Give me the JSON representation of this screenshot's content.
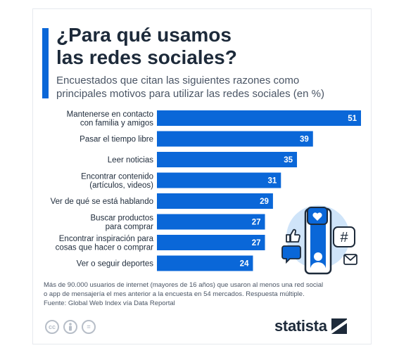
{
  "header": {
    "title_lines": [
      "¿Para qué usamos",
      "las redes sociales?"
    ],
    "subtitle_lines": [
      "Encuestados que citan las siguientes razones como",
      "principales motivos para utilizar las redes sociales (en %)"
    ]
  },
  "chart_data": {
    "type": "bar",
    "orientation": "horizontal",
    "title": "¿Para qué usamos las redes sociales?",
    "subtitle": "Encuestados que citan las siguientes razones como principales motivos para utilizar las redes sociales (en %)",
    "categories": [
      [
        "Mantenerse en contacto",
        "con familia y amigos"
      ],
      [
        "Pasar el tiempo libre"
      ],
      [
        "Leer noticias"
      ],
      [
        "Encontrar contenido",
        "(artículos, videos)"
      ],
      [
        "Ver de qué se está hablando"
      ],
      [
        "Buscar productos",
        "para comprar"
      ],
      [
        "Encontrar inspiración para",
        "cosas que hacer o comprar"
      ],
      [
        "Ver o seguir deportes"
      ]
    ],
    "values": [
      51,
      39,
      35,
      31,
      29,
      27,
      27,
      24
    ],
    "xlim": [
      0,
      51
    ],
    "grid": false,
    "bar_color": "#0a67d8"
  },
  "footer": {
    "note_lines": [
      "Más de 90.000 usuarios de internet (mayores de 16 años) que usaron al menos una red social",
      "o app de mensajería el mes anterior a la encuesta en 54 mercados. Respuesta múltiple.",
      "Fuente: Global Web Index vía Data Reportal"
    ],
    "license_icons": [
      "cc-icon",
      "attribution-icon",
      "equals-icon"
    ],
    "logo_text": "statista"
  },
  "illustration": {
    "icons": [
      "like-icon",
      "chat-bubble-icon",
      "heart-icon",
      "smartphone-icon",
      "hashtag-icon",
      "mail-icon"
    ]
  },
  "colors": {
    "accent": "#0a67d8",
    "text": "#1d2a3a",
    "muted": "#4a5565",
    "circle": "#cfe4f9"
  }
}
